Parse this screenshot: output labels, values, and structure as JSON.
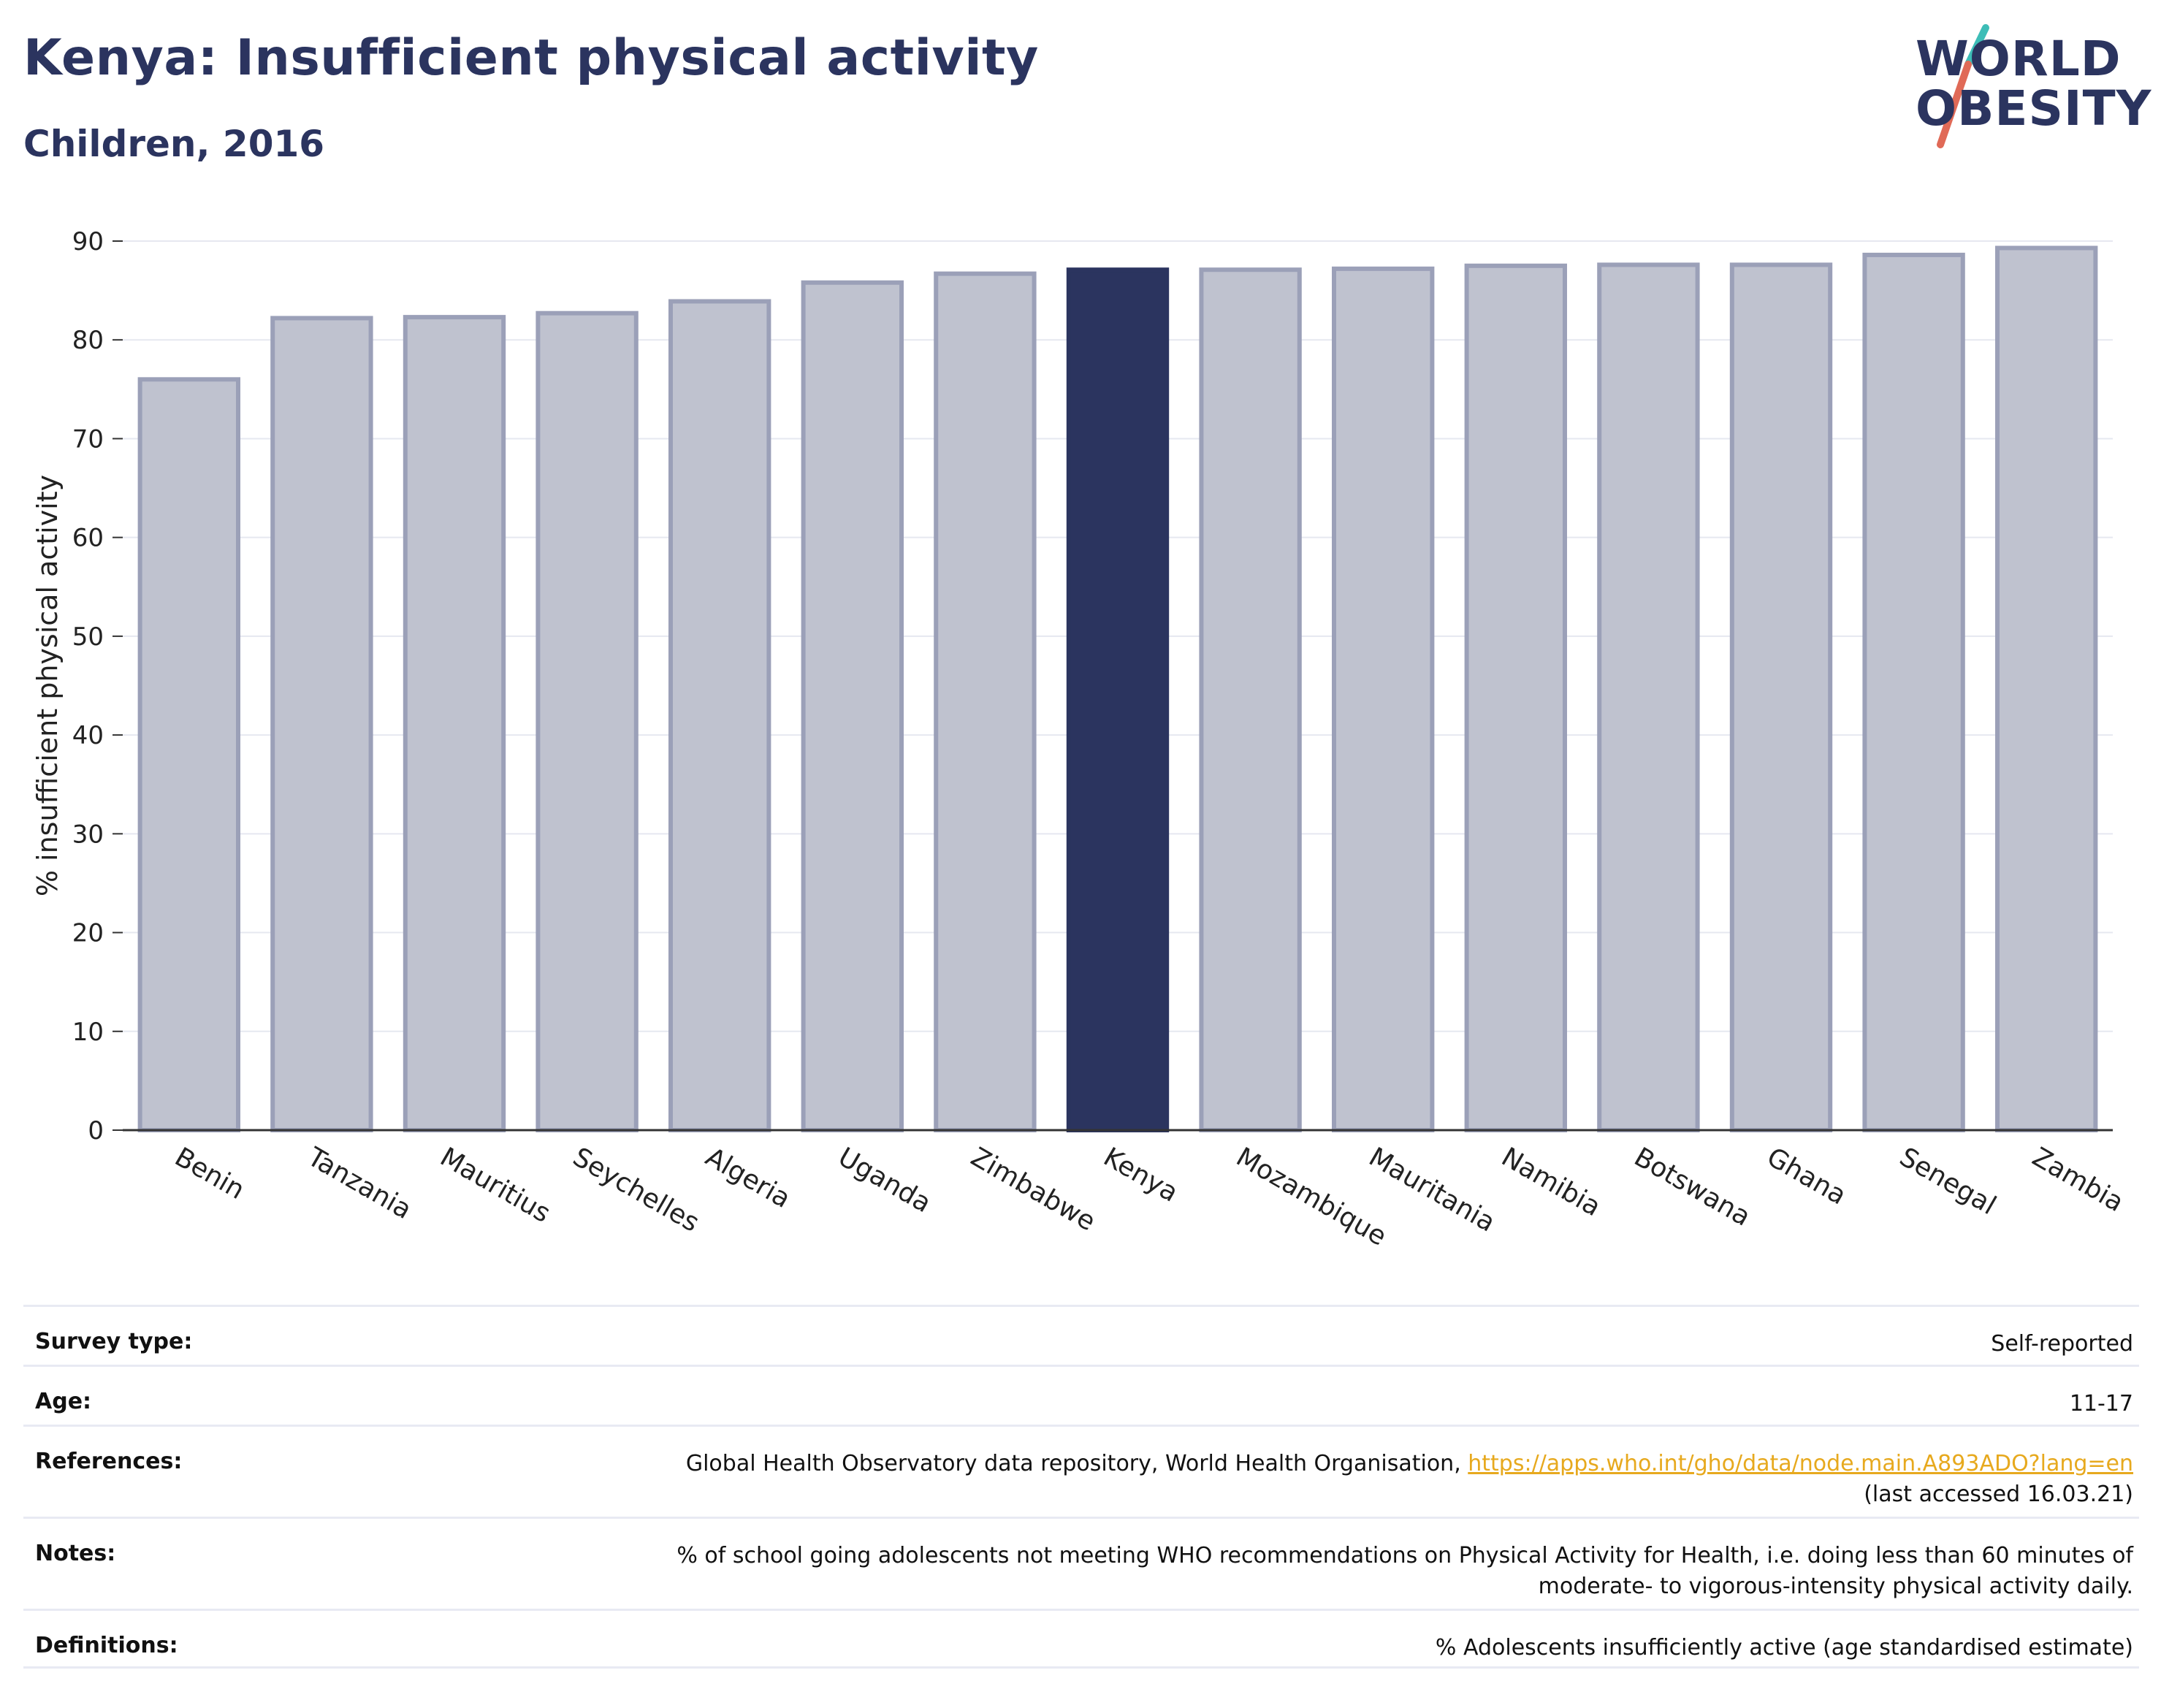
{
  "header": {
    "title": "Kenya: Insufficient physical activity",
    "subtitle": "Children, 2016"
  },
  "logo": {
    "line1": "WORLD",
    "line2": "OBESITY",
    "accent_teal": "#3dbdb7",
    "accent_red": "#e06a57",
    "color": "#2b345f"
  },
  "chart_data": {
    "type": "bar",
    "categories": [
      "Benin",
      "Tanzania",
      "Mauritius",
      "Seychelles",
      "Algeria",
      "Uganda",
      "Zimbabwe",
      "Kenya",
      "Mozambique",
      "Mauritania",
      "Namibia",
      "Botswana",
      "Ghana",
      "Senegal",
      "Zambia"
    ],
    "values": [
      76.0,
      82.2,
      82.3,
      82.7,
      83.9,
      85.8,
      86.7,
      87.1,
      87.1,
      87.2,
      87.5,
      87.6,
      87.6,
      88.6,
      89.3
    ],
    "highlight": "Kenya",
    "title": "Kenya: Insufficient physical activity",
    "subtitle": "Children, 2016",
    "xlabel": "",
    "ylabel": "% insufficient physical activity",
    "ylim": [
      0,
      90
    ],
    "yticks": [
      0,
      10,
      20,
      30,
      40,
      50,
      60,
      70,
      80,
      90
    ],
    "grid": true,
    "legend": "none",
    "colors": {
      "bar_fill": "#bfc2cf",
      "bar_stroke": "#9ba0b8",
      "highlight_fill": "#2b345f",
      "grid": "#e6e8f0",
      "axis": "#333333"
    }
  },
  "info": {
    "rows": [
      {
        "label": "Survey type:",
        "value": "Self-reported"
      },
      {
        "label": "Age:",
        "value": "11-17"
      },
      {
        "label": "References:",
        "value": "Global Health Observatory data repository, World Health Organisation, ",
        "link": "https://apps.who.int/gho/data/node.main.A893ADO?lang=en",
        "value2": "(last accessed 16.03.21)"
      },
      {
        "label": "Notes:",
        "value": "% of school going adolescents not meeting WHO recommendations on Physical Activity for Health, i.e. doing less than 60 minutes of",
        "value2": "moderate- to vigorous-intensity physical activity daily."
      },
      {
        "label": "Definitions:",
        "value": "% Adolescents insufficiently active (age standardised estimate)"
      }
    ]
  }
}
